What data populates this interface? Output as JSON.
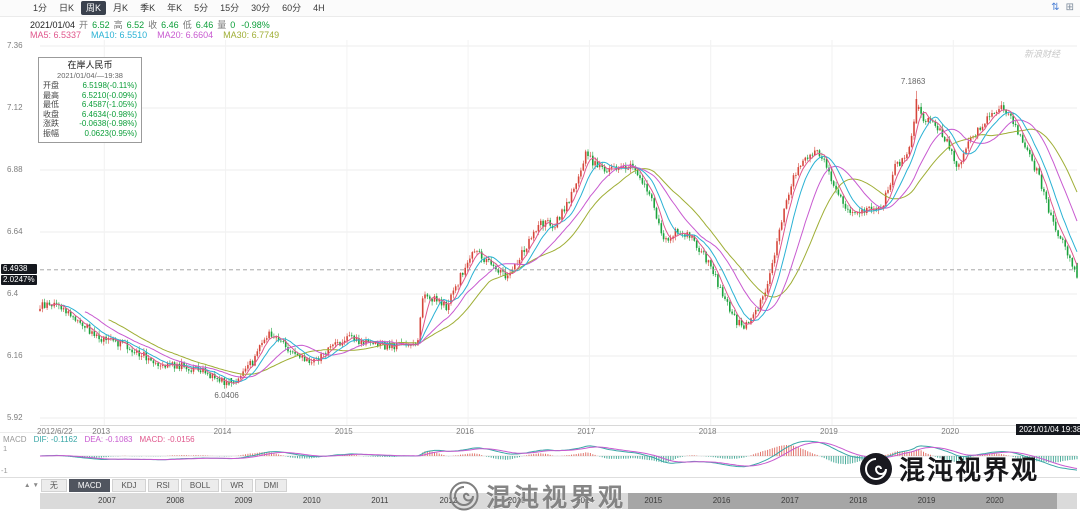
{
  "app": {
    "title": "在岸人民币"
  },
  "toolbar": {
    "periods": [
      "1分",
      "日K",
      "周K",
      "月K",
      "季K",
      "年K",
      "5分",
      "15分",
      "30分",
      "60分",
      "4H"
    ],
    "active_period": "周K",
    "icons": [
      {
        "name": "sort-arrows-icon",
        "glyph": "⇅",
        "color": "#4a7fd4"
      },
      {
        "name": "layout-grid-icon",
        "glyph": "⊞",
        "color": "#7a8899"
      }
    ]
  },
  "info_bar": {
    "date": "2021/01/04",
    "fields": [
      [
        "开",
        "6.52"
      ],
      [
        "高",
        "6.52"
      ],
      [
        "收",
        "6.46"
      ],
      [
        "低",
        "6.46"
      ],
      [
        "量",
        "0"
      ]
    ],
    "change": "-0.98%"
  },
  "ma_legend": [
    {
      "label": "MA5: 6.5337",
      "color": "#e0568c"
    },
    {
      "label": "MA10: 6.5510",
      "color": "#2ab2d4"
    },
    {
      "label": "MA20: 6.6604",
      "color": "#c85ad0"
    },
    {
      "label": "MA30: 6.7749",
      "color": "#9fae35"
    }
  ],
  "tooltip": {
    "title": "在岸人民币",
    "datetime": "2021/01/04/—19:38",
    "rows": [
      [
        "开盘",
        "6.5198(-0.11%)"
      ],
      [
        "最高",
        "6.5210(-0.09%)"
      ],
      [
        "最低",
        "6.4587(-1.05%)"
      ],
      [
        "收盘",
        "6.4634(-0.98%)"
      ],
      [
        "涨跌",
        "-0.0638(-0.98%)"
      ],
      [
        "振幅",
        "0.0623(0.95%)"
      ]
    ]
  },
  "y_axis_ticks": [
    "7.36",
    "7.12",
    "6.88",
    "6.64",
    "6.4",
    "6.16",
    "5.92"
  ],
  "price_tag": {
    "price": "6.4938",
    "percent": "2.0247%",
    "value": 6.4938
  },
  "x_axis_labels": [
    {
      "text": "2012/6/22",
      "t": 2012.66
    },
    {
      "text": "2013",
      "t": 2013
    },
    {
      "text": "2014",
      "t": 2014
    },
    {
      "text": "2015",
      "t": 2015
    },
    {
      "text": "2016",
      "t": 2016
    },
    {
      "text": "2017",
      "t": 2017
    },
    {
      "text": "2018",
      "t": 2018
    },
    {
      "text": "2019",
      "t": 2019
    },
    {
      "text": "2020",
      "t": 2020
    }
  ],
  "annotations": {
    "low": {
      "text": "6.0406",
      "t": 2014.04,
      "v": 6.0406
    },
    "high": {
      "text": "7.1863",
      "t": 2019.7,
      "v": 7.1863
    }
  },
  "crosshair": {
    "date_label": "2021/01/04 19:38",
    "price": 6.4938
  },
  "macd_panel": {
    "name_label": "MACD",
    "dif": "DIF: -0.1162",
    "dea": "DEA: -0.1083",
    "macd": "MACD: -0.0156",
    "axis_top": "1",
    "axis_bottom": "-1"
  },
  "indicator_tabs": {
    "arrows": [
      {
        "name": "scroll-up-icon",
        "glyph": "▲"
      },
      {
        "name": "scroll-down-icon",
        "glyph": "▼"
      }
    ],
    "items": [
      "无",
      "MACD",
      "KDJ",
      "RSI",
      "BOLL",
      "WR",
      "DMI"
    ],
    "active": "MACD"
  },
  "navigator_years": [
    "2007",
    "2008",
    "2009",
    "2010",
    "2011",
    "2012",
    "2013",
    "2014",
    "2015",
    "2016",
    "2017",
    "2018",
    "2019",
    "2020"
  ],
  "watermarks": {
    "center": "混沌视界观",
    "right": "混沌视界观",
    "corner": "新浪财经"
  },
  "chart_data": {
    "type": "candlestick",
    "title": "在岸人民币",
    "period": "周K",
    "x_start": 2012.47,
    "x_end": 2021.02,
    "y_ticks": [
      7.36,
      7.12,
      6.88,
      6.64,
      6.4,
      6.16,
      5.92
    ],
    "key_points": {
      "min": 6.0406,
      "max": 7.1863,
      "last_open": 6.5198,
      "last_high": 6.521,
      "last_low": 6.4587,
      "last_close": 6.4634
    },
    "ma_values": {
      "MA5": 6.5337,
      "MA10": 6.551,
      "MA20": 6.6604,
      "MA30": 6.7749
    },
    "macd_values": {
      "DIF": -0.1162,
      "DEA": -0.1083,
      "MACD": -0.0156
    },
    "colors": {
      "up": "#d6453a",
      "down": "#1ba23c",
      "ma5": "#e0568c",
      "ma10": "#2ab2d4",
      "ma20": "#c85ad0",
      "ma30": "#9fae35",
      "dif_line": "#3aa7a7",
      "dea_line": "#c85ad0",
      "hist_pos": "#e2766d",
      "hist_neg": "#4fae9c"
    },
    "anchors": [
      [
        2012.47,
        6.35
      ],
      [
        2012.6,
        6.365
      ],
      [
        2012.78,
        6.3
      ],
      [
        2012.95,
        6.23
      ],
      [
        2013.1,
        6.215
      ],
      [
        2013.25,
        6.18
      ],
      [
        2013.45,
        6.135
      ],
      [
        2013.65,
        6.12
      ],
      [
        2013.85,
        6.095
      ],
      [
        2013.98,
        6.065
      ],
      [
        2014.04,
        6.055
      ],
      [
        2014.12,
        6.08
      ],
      [
        2014.22,
        6.135
      ],
      [
        2014.33,
        6.245
      ],
      [
        2014.45,
        6.225
      ],
      [
        2014.6,
        6.15
      ],
      [
        2014.75,
        6.14
      ],
      [
        2014.9,
        6.21
      ],
      [
        2015.05,
        6.23
      ],
      [
        2015.2,
        6.2
      ],
      [
        2015.4,
        6.2
      ],
      [
        2015.58,
        6.21
      ],
      [
        2015.63,
        6.4
      ],
      [
        2015.72,
        6.38
      ],
      [
        2015.82,
        6.35
      ],
      [
        2015.95,
        6.48
      ],
      [
        2016.05,
        6.57
      ],
      [
        2016.2,
        6.51
      ],
      [
        2016.32,
        6.47
      ],
      [
        2016.45,
        6.56
      ],
      [
        2016.6,
        6.67
      ],
      [
        2016.72,
        6.67
      ],
      [
        2016.85,
        6.78
      ],
      [
        2016.97,
        6.94
      ],
      [
        2017.05,
        6.9
      ],
      [
        2017.2,
        6.88
      ],
      [
        2017.35,
        6.9
      ],
      [
        2017.5,
        6.78
      ],
      [
        2017.62,
        6.6
      ],
      [
        2017.72,
        6.65
      ],
      [
        2017.85,
        6.61
      ],
      [
        2017.97,
        6.53
      ],
      [
        2018.08,
        6.42
      ],
      [
        2018.2,
        6.3
      ],
      [
        2018.28,
        6.27
      ],
      [
        2018.38,
        6.33
      ],
      [
        2018.48,
        6.45
      ],
      [
        2018.58,
        6.68
      ],
      [
        2018.68,
        6.85
      ],
      [
        2018.78,
        6.92
      ],
      [
        2018.88,
        6.96
      ],
      [
        2018.96,
        6.89
      ],
      [
        2019.06,
        6.78
      ],
      [
        2019.16,
        6.71
      ],
      [
        2019.3,
        6.72
      ],
      [
        2019.42,
        6.75
      ],
      [
        2019.52,
        6.89
      ],
      [
        2019.62,
        6.93
      ],
      [
        2019.7,
        7.12
      ],
      [
        2019.76,
        7.08
      ],
      [
        2019.86,
        7.05
      ],
      [
        2019.96,
        6.98
      ],
      [
        2020.04,
        6.88
      ],
      [
        2020.12,
        6.98
      ],
      [
        2020.22,
        7.04
      ],
      [
        2020.3,
        7.09
      ],
      [
        2020.4,
        7.13
      ],
      [
        2020.5,
        7.06
      ],
      [
        2020.6,
        6.97
      ],
      [
        2020.7,
        6.86
      ],
      [
        2020.8,
        6.71
      ],
      [
        2020.9,
        6.6
      ],
      [
        2020.97,
        6.52
      ],
      [
        2021.02,
        6.4634
      ]
    ]
  }
}
